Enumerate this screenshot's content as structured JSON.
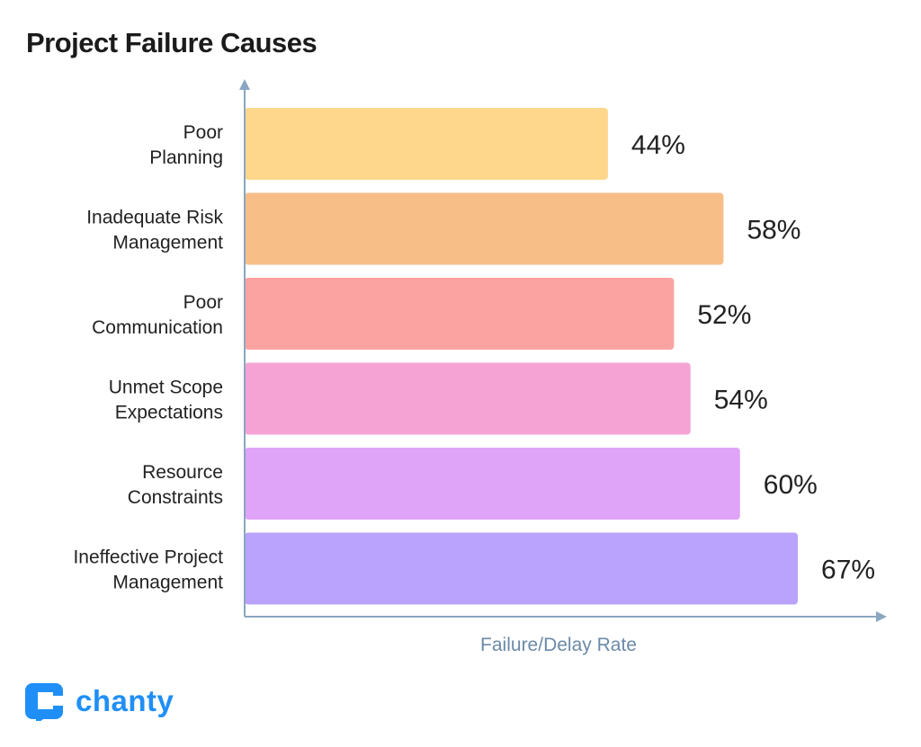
{
  "chart_data": {
    "type": "bar",
    "orientation": "horizontal",
    "title": "Project Failure Causes",
    "xlabel": "Failure/Delay Rate",
    "ylabel": "",
    "categories": [
      [
        "Poor",
        "Planning"
      ],
      [
        "Inadequate Risk",
        "Management"
      ],
      [
        "Poor",
        "Communication"
      ],
      [
        "Unmet Scope",
        "Expectations"
      ],
      [
        "Resource",
        "Constraints"
      ],
      [
        "Ineffective Project",
        "Management"
      ]
    ],
    "values": [
      44,
      58,
      52,
      54,
      60,
      67
    ],
    "value_labels": [
      "44%",
      "58%",
      "52%",
      "54%",
      "60%",
      "67%"
    ],
    "colors": [
      "#FED78C",
      "#F8BE88",
      "#FBA3A0",
      "#F5A3D4",
      "#DFA3F8",
      "#B9A3FC"
    ],
    "axis_color": "#8AA6C1",
    "grid": false,
    "legend": "none",
    "xlim": [
      0,
      75
    ]
  },
  "brand": {
    "name": "chanty",
    "color": "#1F8FF7",
    "icon": "chat-bubble-c-icon"
  }
}
